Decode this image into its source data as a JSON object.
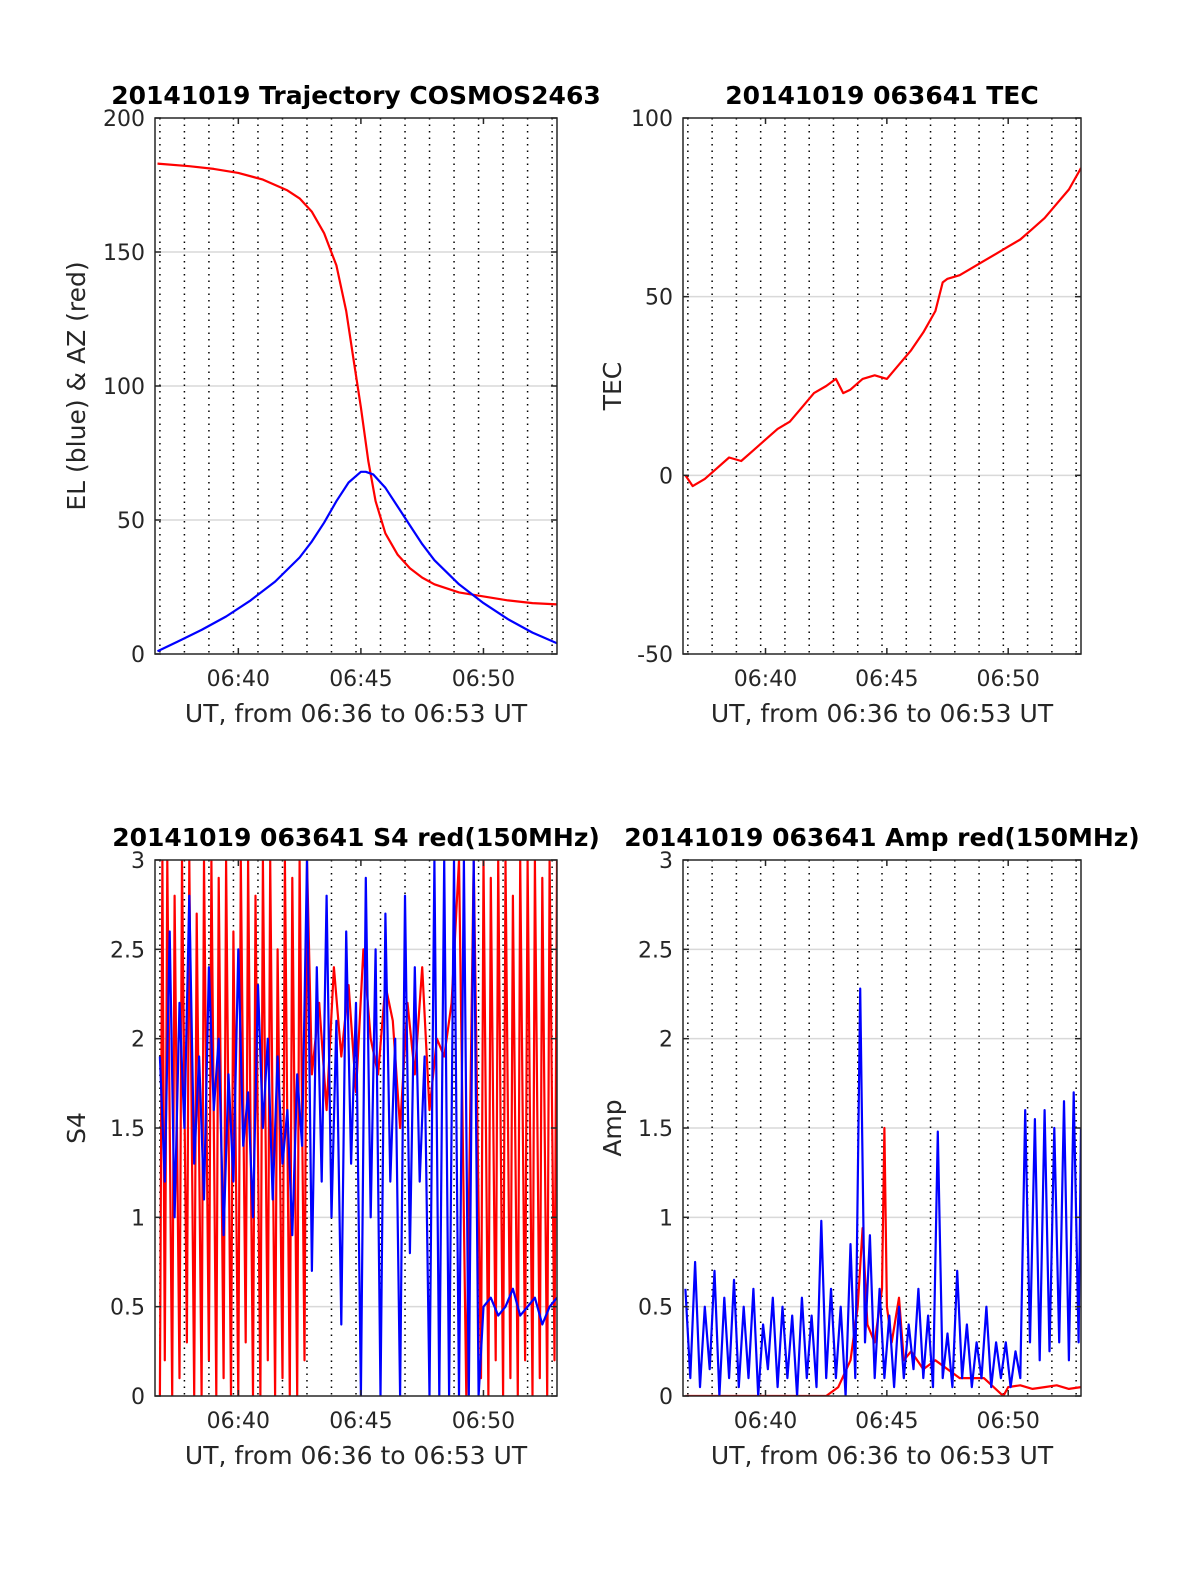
{
  "colors": {
    "red": "#ff0000",
    "blue": "#0000ff",
    "grid": "#d9d9d9",
    "axis": "#262626",
    "vgrid": "#000000"
  },
  "chart_data": [
    {
      "type": "line",
      "title": "20141019 Trajectory COSMOS2463",
      "xlabel": "UT, from 06:36 to 06:53 UT",
      "ylabel": "EL (blue) & AZ (red)",
      "xlim": [
        36.6,
        53.0
      ],
      "ylim": [
        0,
        200
      ],
      "yticks": [
        0,
        50,
        100,
        150,
        200
      ],
      "xticks": [
        40,
        45,
        50
      ],
      "xticklabels": [
        "06:40",
        "06:45",
        "06:50"
      ],
      "vgrid_minutes": [
        36.8,
        37.8,
        38.8,
        39.8,
        40.8,
        41.8,
        42.8,
        43.8,
        44.8,
        45.8,
        46.8,
        47.8,
        48.8,
        49.8,
        50.8,
        51.8,
        52.8
      ],
      "series": [
        {
          "color": "red",
          "x": [
            36.7,
            38.0,
            39.0,
            40.0,
            41.0,
            42.0,
            42.5,
            43.0,
            43.5,
            44.0,
            44.4,
            44.7,
            45.0,
            45.3,
            45.6,
            46.0,
            46.5,
            47.0,
            47.5,
            48.0,
            49.0,
            50.0,
            51.0,
            52.0,
            53.0
          ],
          "y": [
            183,
            182,
            181,
            179.5,
            177,
            173,
            170,
            165,
            157,
            145,
            128,
            110,
            92,
            72,
            57,
            45,
            37,
            32,
            28.5,
            26,
            23,
            21.5,
            20,
            19,
            18.5
          ]
        },
        {
          "color": "blue",
          "x": [
            36.7,
            37.5,
            38.5,
            39.5,
            40.5,
            41.5,
            42.5,
            43.0,
            43.5,
            44.0,
            44.5,
            45.0,
            45.2,
            45.5,
            46.0,
            46.5,
            47.0,
            47.5,
            48.0,
            49.0,
            50.0,
            51.0,
            52.0,
            53.0
          ],
          "y": [
            1,
            4.5,
            9,
            14,
            20,
            27,
            36,
            42,
            49,
            57,
            64,
            68,
            68,
            67,
            62,
            55,
            48,
            41,
            35,
            26,
            19,
            13,
            8,
            4
          ]
        }
      ]
    },
    {
      "type": "line",
      "title": "20141019 063641 TEC",
      "xlabel": "UT, from 06:36 to 06:53 UT",
      "ylabel": "TEC",
      "xlim": [
        36.6,
        53.0
      ],
      "ylim": [
        -50,
        100
      ],
      "yticks": [
        -50,
        0,
        50,
        100
      ],
      "xticks": [
        40,
        45,
        50
      ],
      "xticklabels": [
        "06:40",
        "06:45",
        "06:50"
      ],
      "vgrid_minutes": [
        36.8,
        37.8,
        38.8,
        39.8,
        40.8,
        41.8,
        42.8,
        43.8,
        44.8,
        45.8,
        46.8,
        47.8,
        48.8,
        49.8,
        50.8,
        51.8,
        52.8
      ],
      "series": [
        {
          "color": "red",
          "x": [
            36.7,
            37.0,
            37.5,
            38.0,
            38.5,
            39.0,
            39.5,
            40.0,
            40.5,
            41.0,
            41.5,
            42.0,
            42.5,
            42.9,
            43.2,
            43.5,
            44.0,
            44.5,
            45.0,
            45.5,
            46.0,
            46.5,
            47.0,
            47.3,
            47.5,
            48.0,
            48.5,
            49.0,
            49.5,
            50.0,
            50.5,
            51.0,
            51.5,
            52.0,
            52.5,
            53.0
          ],
          "y": [
            0,
            -3,
            -1,
            2,
            5,
            4,
            7,
            10,
            13,
            15,
            19,
            23,
            25,
            27,
            23,
            24,
            27,
            28,
            27,
            31,
            35,
            40,
            46,
            54,
            55,
            56,
            58,
            60,
            62,
            64,
            66,
            69,
            72,
            76,
            80,
            86
          ]
        }
      ]
    },
    {
      "type": "line",
      "title": "20141019 063641 S4 red(150MHz)",
      "xlabel": "UT, from 06:36 to 06:53 UT",
      "ylabel": "S4",
      "xlim": [
        36.6,
        53.0
      ],
      "ylim": [
        0,
        3
      ],
      "yticks": [
        0,
        0.5,
        1,
        1.5,
        2,
        2.5,
        3
      ],
      "xticks": [
        40,
        45,
        50
      ],
      "xticklabels": [
        "06:40",
        "06:45",
        "06:50"
      ],
      "vgrid_minutes": [
        36.8,
        37.8,
        38.8,
        39.8,
        40.8,
        41.8,
        42.8,
        43.8,
        44.8,
        45.8,
        46.8,
        47.8,
        48.8,
        49.8,
        50.8,
        51.8,
        52.8
      ],
      "series": [
        {
          "color": "red",
          "x": [
            36.8,
            36.9,
            37.0,
            37.1,
            37.3,
            37.4,
            37.6,
            37.7,
            37.9,
            38.0,
            38.2,
            38.3,
            38.5,
            38.6,
            38.8,
            38.9,
            39.1,
            39.2,
            39.4,
            39.5,
            39.7,
            39.8,
            40.0,
            40.1,
            40.3,
            40.4,
            40.6,
            40.7,
            40.9,
            41.0,
            41.2,
            41.3,
            41.5,
            41.6,
            41.8,
            41.9,
            42.1,
            42.2,
            42.4,
            42.5,
            42.7,
            42.8,
            43.0,
            43.3,
            43.6,
            43.9,
            44.2,
            44.5,
            44.8,
            45.1,
            45.4,
            45.7,
            46.0,
            46.3,
            46.6,
            46.9,
            47.2,
            47.5,
            47.8,
            48.1,
            48.4,
            48.7,
            49.0,
            49.3,
            49.6,
            49.9,
            50.0,
            50.2,
            50.3,
            50.5,
            50.6,
            50.8,
            50.9,
            51.1,
            51.2,
            51.4,
            51.5,
            51.7,
            51.8,
            52.0,
            52.1,
            52.3,
            52.4,
            52.6,
            52.7,
            52.9,
            53.0
          ],
          "y": [
            0,
            3,
            0.2,
            3,
            0,
            2.8,
            0.1,
            3,
            0.3,
            3,
            0,
            2.7,
            0,
            3,
            0.2,
            3,
            0,
            2.9,
            0.1,
            3,
            0,
            2.6,
            0,
            3,
            0.3,
            3,
            0,
            2.8,
            0,
            3,
            0.2,
            3,
            0,
            2.5,
            0.1,
            3,
            0,
            2.9,
            0,
            3,
            0.2,
            3,
            1.8,
            2.2,
            1.6,
            2.4,
            1.9,
            2.3,
            1.7,
            2.5,
            2.0,
            1.8,
            2.3,
            2.1,
            1.5,
            2.2,
            1.8,
            2.4,
            1.6,
            2.0,
            1.9,
            2.2,
            3,
            0,
            3,
            0.1,
            3,
            0,
            2.9,
            0.2,
            3,
            0,
            3,
            0.1,
            2.8,
            0,
            3,
            0.2,
            3,
            0,
            3,
            0.1,
            2.9,
            0,
            3,
            0.2,
            3
          ]
        },
        {
          "color": "blue",
          "x": [
            36.8,
            37.0,
            37.2,
            37.4,
            37.6,
            37.8,
            38.0,
            38.2,
            38.4,
            38.6,
            38.8,
            39.0,
            39.2,
            39.4,
            39.6,
            39.8,
            40.0,
            40.2,
            40.4,
            40.6,
            40.8,
            41.0,
            41.2,
            41.4,
            41.6,
            41.8,
            42.0,
            42.2,
            42.4,
            42.6,
            42.8,
            43.0,
            43.2,
            43.4,
            43.6,
            43.8,
            44.0,
            44.2,
            44.4,
            44.6,
            44.8,
            45.0,
            45.2,
            45.4,
            45.6,
            45.8,
            46.0,
            46.2,
            46.4,
            46.6,
            46.8,
            47.0,
            47.2,
            47.4,
            47.6,
            47.8,
            48.0,
            48.2,
            48.4,
            48.6,
            48.8,
            49.0,
            49.2,
            49.4,
            49.6,
            49.8,
            50.0,
            50.3,
            50.6,
            50.9,
            51.2,
            51.5,
            51.8,
            52.1,
            52.4,
            52.7,
            53.0
          ],
          "y": [
            1.9,
            1.2,
            2.6,
            1.0,
            2.2,
            1.5,
            2.8,
            1.3,
            1.9,
            1.1,
            2.4,
            1.6,
            2.0,
            0.9,
            1.8,
            1.2,
            2.5,
            1.4,
            1.7,
            1.0,
            2.3,
            1.5,
            2.0,
            1.1,
            1.9,
            1.3,
            1.6,
            0.9,
            1.8,
            1.4,
            3,
            0.7,
            2.4,
            1.2,
            2.8,
            1.0,
            2.1,
            0.4,
            2.6,
            1.3,
            2.2,
            0,
            2.9,
            1.0,
            2.5,
            0,
            2.7,
            1.2,
            2.0,
            0,
            2.8,
            0.8,
            2.4,
            1.2,
            1.9,
            0,
            3,
            0,
            3,
            0,
            3,
            0,
            3,
            0,
            3,
            0,
            0.5,
            0.55,
            0.45,
            0.5,
            0.6,
            0.45,
            0.5,
            0.55,
            0.4,
            0.5,
            0.55
          ]
        }
      ]
    },
    {
      "type": "line",
      "title": "20141019 063641 Amp red(150MHz)",
      "xlabel": "UT, from 06:36 to 06:53 UT",
      "ylabel": "Amp",
      "xlim": [
        36.6,
        53.0
      ],
      "ylim": [
        0,
        3
      ],
      "yticks": [
        0,
        0.5,
        1,
        1.5,
        2,
        2.5,
        3
      ],
      "xticks": [
        40,
        45,
        50
      ],
      "xticklabels": [
        "06:40",
        "06:45",
        "06:50"
      ],
      "vgrid_minutes": [
        36.8,
        37.8,
        38.8,
        39.8,
        40.8,
        41.8,
        42.8,
        43.8,
        44.8,
        45.8,
        46.8,
        47.8,
        48.8,
        49.8,
        50.8,
        51.8,
        52.8
      ],
      "series": [
        {
          "color": "red",
          "x": [
            36.7,
            37.5,
            38.5,
            39.5,
            40.5,
            41.5,
            42.5,
            43.0,
            43.5,
            43.8,
            44.0,
            44.2,
            44.5,
            44.8,
            44.9,
            45.0,
            45.2,
            45.5,
            45.7,
            46.0,
            46.5,
            47.0,
            48.0,
            49.0,
            49.8,
            50.0,
            50.5,
            51.0,
            51.5,
            52.0,
            52.5,
            53.0
          ],
          "y": [
            0,
            0,
            0,
            0,
            0,
            0,
            0,
            0.05,
            0.2,
            0.5,
            0.94,
            0.4,
            0.3,
            0.6,
            1.5,
            0.5,
            0.3,
            0.55,
            0.2,
            0.25,
            0.15,
            0.2,
            0.1,
            0.1,
            0,
            0.05,
            0.06,
            0.04,
            0.05,
            0.06,
            0.04,
            0.05
          ]
        },
        {
          "color": "blue",
          "x": [
            36.7,
            36.9,
            37.1,
            37.3,
            37.5,
            37.7,
            37.9,
            38.1,
            38.3,
            38.5,
            38.7,
            38.9,
            39.1,
            39.3,
            39.5,
            39.7,
            39.9,
            40.1,
            40.3,
            40.5,
            40.7,
            40.9,
            41.1,
            41.3,
            41.5,
            41.7,
            41.9,
            42.1,
            42.3,
            42.5,
            42.7,
            42.9,
            43.1,
            43.3,
            43.5,
            43.7,
            43.9,
            44.1,
            44.3,
            44.5,
            44.7,
            44.9,
            45.1,
            45.3,
            45.5,
            45.7,
            45.9,
            46.1,
            46.3,
            46.5,
            46.7,
            46.9,
            47.1,
            47.3,
            47.5,
            47.7,
            47.9,
            48.1,
            48.3,
            48.5,
            48.7,
            48.9,
            49.1,
            49.3,
            49.5,
            49.7,
            49.9,
            50.1,
            50.3,
            50.5,
            50.7,
            50.9,
            51.1,
            51.3,
            51.5,
            51.7,
            51.9,
            52.1,
            52.3,
            52.5,
            52.7,
            52.9,
            53.0
          ],
          "y": [
            0.6,
            0.1,
            0.75,
            0.05,
            0.5,
            0.15,
            0.7,
            0,
            0.55,
            0.1,
            0.65,
            0.05,
            0.5,
            0.1,
            0.6,
            0,
            0.4,
            0.15,
            0.55,
            0.05,
            0.5,
            0.1,
            0.45,
            0,
            0.55,
            0.1,
            0.45,
            0.05,
            0.98,
            0.1,
            0.6,
            0.1,
            0.5,
            0,
            0.85,
            0.1,
            2.28,
            0.3,
            0.9,
            0.1,
            0.6,
            0.1,
            0.45,
            0.05,
            0.5,
            0.1,
            0.4,
            0.15,
            0.6,
            0.1,
            0.45,
            0.05,
            1.48,
            0.1,
            0.35,
            0.05,
            0.7,
            0.1,
            0.4,
            0.05,
            0.3,
            0.1,
            0.5,
            0.05,
            0.3,
            0.1,
            0.3,
            0.05,
            0.25,
            0.1,
            1.6,
            0.3,
            1.55,
            0.2,
            1.6,
            0.25,
            1.5,
            0.3,
            1.65,
            0.2,
            1.7,
            0.3,
            1.5
          ]
        }
      ]
    }
  ]
}
